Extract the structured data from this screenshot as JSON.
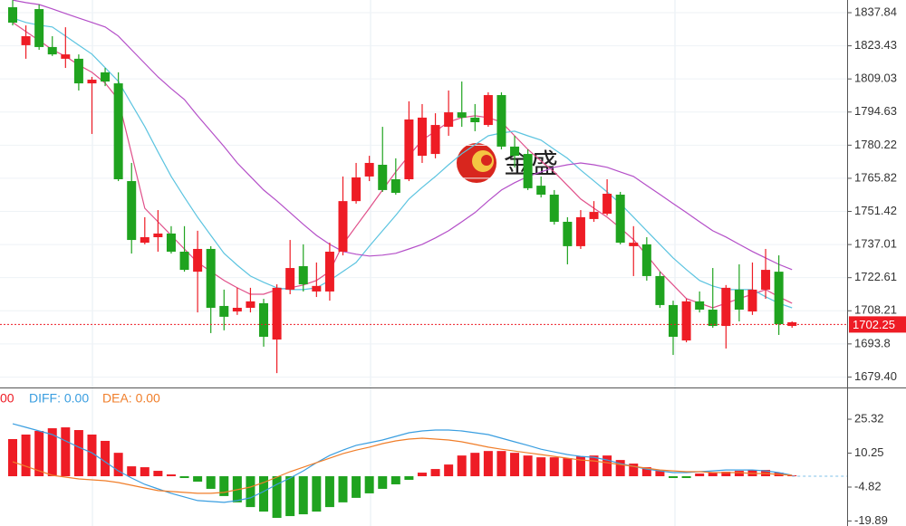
{
  "chart_data": [
    {
      "type": "candlestick",
      "up_color": "#ee1c25",
      "down_color": "#1fa31f",
      "open": [
        1840.2,
        1823.7,
        1839.4,
        1822.9,
        1817.8,
        1817.8,
        1807.1,
        1811.9,
        1807.1,
        1764.6,
        1737.8,
        1740.2,
        1741.8,
        1733.9,
        1725.2,
        1735.1,
        1710.3,
        1707.9,
        1709.5,
        1711.5,
        1695.7,
        1717.4,
        1727.6,
        1716.6,
        1716.6,
        1733.9,
        1755.9,
        1766.6,
        1771.7,
        1765.4,
        1765.4,
        1775.6,
        1776.4,
        1788.2,
        1794.5,
        1792.2,
        1789.0,
        1802.0,
        1779.6,
        1776.4,
        1762.6,
        1758.7,
        1746.9,
        1736.3,
        1748.1,
        1750.4,
        1758.7,
        1736.3,
        1737.1,
        1723.3,
        1710.7,
        1695.3,
        1712.3,
        1708.7,
        1701.6,
        1717.4,
        1707.9,
        1717.4,
        1725.2,
        1701.6
      ],
      "high": [
        1843.3,
        1832.3,
        1841.4,
        1827.6,
        1831.5,
        1819.7,
        1809.9,
        1813.8,
        1811.9,
        1772.5,
        1748.9,
        1752.0,
        1745.0,
        1745.0,
        1743.0,
        1736.3,
        1717.4,
        1718.2,
        1718.2,
        1713.4,
        1719.7,
        1739.0,
        1737.1,
        1729.2,
        1737.8,
        1766.6,
        1772.5,
        1775.6,
        1788.2,
        1774.5,
        1799.3,
        1798.1,
        1794.1,
        1804.0,
        1807.9,
        1798.1,
        1803.2,
        1803.2,
        1784.3,
        1778.4,
        1766.6,
        1760.7,
        1748.9,
        1752.0,
        1755.9,
        1765.4,
        1759.9,
        1745.0,
        1740.2,
        1725.2,
        1712.6,
        1713.4,
        1716.6,
        1726.8,
        1719.4,
        1728.4,
        1729.2,
        1735.1,
        1732.3,
        1703.6
      ],
      "low": [
        1832.3,
        1817.8,
        1821.7,
        1819.0,
        1813.8,
        1804.0,
        1785.1,
        1805.9,
        1764.6,
        1733.1,
        1737.1,
        1733.9,
        1733.1,
        1725.2,
        1707.5,
        1698.5,
        1699.7,
        1706.4,
        1707.5,
        1692.6,
        1681.1,
        1715.4,
        1716.6,
        1714.2,
        1712.6,
        1732.3,
        1754.8,
        1764.6,
        1759.9,
        1758.7,
        1764.6,
        1772.5,
        1774.5,
        1784.3,
        1788.2,
        1786.3,
        1788.2,
        1778.4,
        1770.5,
        1760.7,
        1757.5,
        1745.7,
        1728.4,
        1735.1,
        1746.9,
        1749.6,
        1737.1,
        1723.3,
        1721.3,
        1709.5,
        1689.0,
        1694.5,
        1707.5,
        1700.8,
        1691.8,
        1703.6,
        1706.4,
        1713.4,
        1697.7,
        1700.8
      ],
      "close": [
        1833.5,
        1827.6,
        1822.9,
        1819.7,
        1819.7,
        1807.1,
        1808.7,
        1807.9,
        1765.4,
        1739.0,
        1740.2,
        1741.8,
        1733.9,
        1726.0,
        1735.1,
        1709.5,
        1705.6,
        1709.5,
        1712.3,
        1696.9,
        1718.2,
        1726.8,
        1719.7,
        1719.0,
        1733.9,
        1755.9,
        1766.2,
        1772.5,
        1760.7,
        1759.5,
        1791.4,
        1792.2,
        1789.0,
        1794.5,
        1792.2,
        1790.2,
        1802.0,
        1779.6,
        1775.6,
        1761.5,
        1758.7,
        1746.9,
        1736.3,
        1748.9,
        1751.2,
        1759.1,
        1737.8,
        1737.8,
        1723.3,
        1710.7,
        1696.9,
        1712.3,
        1708.7,
        1701.6,
        1718.2,
        1708.7,
        1717.4,
        1726.0,
        1702.4,
        1703.2
      ],
      "lines": [
        {
          "color": "#e0508a",
          "values": [
            1833.6,
            1829.6,
            1825.7,
            1821.7,
            1818.9,
            1815.1,
            1811.9,
            1807.2,
            1800.1,
            1776.5,
            1752.8,
            1746.9,
            1741.0,
            1735.1,
            1729.2,
            1725.3,
            1721.4,
            1718.2,
            1715.4,
            1715.4,
            1717.4,
            1718.2,
            1719.4,
            1721.4,
            1725.3,
            1737.1,
            1745.0,
            1752.8,
            1760.7,
            1768.6,
            1775.7,
            1782.4,
            1786.3,
            1790.3,
            1792.2,
            1793.0,
            1792.2,
            1790.3,
            1784.3,
            1778.4,
            1773.3,
            1768.6,
            1762.7,
            1756.8,
            1752.8,
            1748.9,
            1744.2,
            1739.1,
            1732.4,
            1725.3,
            1719.4,
            1713.5,
            1711.5,
            1709.5,
            1711.5,
            1713.5,
            1715.4,
            1717.4,
            1714.3,
            1711.5
          ]
        },
        {
          "color": "#5cc4e0",
          "values": [
            1835.5,
            1833.6,
            1832.4,
            1831.6,
            1827.7,
            1823.7,
            1819.8,
            1813.9,
            1808.0,
            1798.1,
            1788.3,
            1777.3,
            1766.6,
            1757.6,
            1748.9,
            1741.0,
            1733.2,
            1728.0,
            1723.3,
            1720.6,
            1718.2,
            1717.4,
            1717.4,
            1718.2,
            1721.4,
            1725.3,
            1729.2,
            1736.3,
            1743.0,
            1749.7,
            1756.8,
            1761.9,
            1766.6,
            1771.7,
            1776.5,
            1780.4,
            1784.3,
            1785.5,
            1786.3,
            1784.3,
            1782.4,
            1778.4,
            1774.5,
            1769.4,
            1764.7,
            1759.9,
            1754.8,
            1748.9,
            1743.0,
            1737.1,
            1731.2,
            1726.1,
            1721.4,
            1719.0,
            1717.4,
            1717.4,
            1717.4,
            1714.3,
            1711.5,
            1709.5
          ]
        },
        {
          "color": "#b44fc8",
          "values": [
            1843.3,
            1842.2,
            1841.4,
            1839.5,
            1837.5,
            1835.5,
            1833.6,
            1831.6,
            1827.7,
            1821.7,
            1815.8,
            1809.9,
            1804.8,
            1800.1,
            1793.0,
            1786.3,
            1779.6,
            1772.5,
            1766.6,
            1760.7,
            1756.0,
            1750.9,
            1745.8,
            1741.0,
            1737.1,
            1734.0,
            1732.8,
            1732.0,
            1732.4,
            1733.2,
            1735.1,
            1737.1,
            1739.9,
            1743.0,
            1746.9,
            1750.9,
            1756.0,
            1760.7,
            1763.9,
            1766.6,
            1768.6,
            1770.6,
            1771.7,
            1772.5,
            1771.7,
            1770.6,
            1768.6,
            1766.6,
            1762.7,
            1758.8,
            1754.8,
            1750.9,
            1746.9,
            1743.0,
            1740.3,
            1737.1,
            1734.0,
            1731.2,
            1728.4,
            1726.1
          ]
        }
      ],
      "ylim": [
        1674.85,
        1843.35
      ],
      "yticks": [
        1837.84,
        1823.43,
        1809.03,
        1794.63,
        1780.22,
        1765.82,
        1751.42,
        1737.01,
        1722.61,
        1708.21,
        1693.8,
        {
          "value": 1679.4,
          "label": "1679.40"
        }
      ],
      "last_price": 1702.25,
      "watermark": "金盛",
      "grid": true
    },
    {
      "type": "macd",
      "legend": [
        {
          "text": "00",
          "color": "#ee1c25"
        },
        {
          "text": "DIFF: 0.00",
          "color": "#3a9ee0"
        },
        {
          "text": "DEA: 0.00",
          "color": "#f07e2a"
        }
      ],
      "up_color": "#ee1c25",
      "down_color": "#1fa31f",
      "histogram": [
        16.5,
        18.5,
        20.1,
        21.3,
        21.7,
        20.5,
        18.5,
        15.7,
        10.4,
        4.4,
        4.0,
        2.4,
        0.8,
        -0.8,
        -2.4,
        -5.6,
        -8.8,
        -11.6,
        -13.7,
        -15.7,
        -18.5,
        -17.7,
        -16.9,
        -15.7,
        -13.7,
        -11.6,
        -9.6,
        -7.6,
        -5.6,
        -3.6,
        -1.6,
        1.6,
        3.2,
        5.2,
        9.2,
        10.4,
        11.2,
        11.2,
        10.4,
        9.2,
        8.4,
        8.4,
        8.0,
        8.8,
        9.2,
        9.2,
        7.2,
        5.6,
        4.0,
        2.4,
        -0.8,
        -0.8,
        1.2,
        1.6,
        2.0,
        2.4,
        2.8,
        2.8,
        1.6,
        0.4
      ],
      "series": [
        {
          "color": "#3a9ee0",
          "values": [
            23.3,
            21.7,
            20.1,
            18.5,
            15.7,
            12.9,
            10.4,
            6.4,
            2.4,
            -0.8,
            -3.6,
            -5.6,
            -7.6,
            -9.2,
            -10.8,
            -11.2,
            -11.6,
            -10.8,
            -9.6,
            -6.8,
            -3.6,
            -0.8,
            2.4,
            6.0,
            9.2,
            11.6,
            13.7,
            14.9,
            16.1,
            17.7,
            19.3,
            20.1,
            20.5,
            20.5,
            20.1,
            19.3,
            18.5,
            16.9,
            15.3,
            13.7,
            12.0,
            10.8,
            9.6,
            8.8,
            8.4,
            7.2,
            5.6,
            4.4,
            3.2,
            2.4,
            1.6,
            1.6,
            2.0,
            2.4,
            2.8,
            2.8,
            2.8,
            2.4,
            1.6,
            0.4
          ]
        },
        {
          "color": "#f07e2a",
          "values": [
            6.4,
            4.4,
            2.4,
            0.4,
            -0.4,
            -1.2,
            -1.6,
            -2.0,
            -2.8,
            -4.0,
            -5.2,
            -6.4,
            -6.8,
            -7.2,
            -7.6,
            -7.6,
            -7.2,
            -6.0,
            -4.8,
            -2.8,
            -0.4,
            2.0,
            4.0,
            6.0,
            8.0,
            10.0,
            11.6,
            12.9,
            14.5,
            15.7,
            16.5,
            16.9,
            16.5,
            16.1,
            15.3,
            14.1,
            12.9,
            12.0,
            11.2,
            10.4,
            9.6,
            8.8,
            8.0,
            7.2,
            6.8,
            6.0,
            5.2,
            4.4,
            3.6,
            2.8,
            2.4,
            2.0,
            2.0,
            1.6,
            1.6,
            1.6,
            1.2,
            1.2,
            0.8,
            0.4
          ]
        }
      ],
      "ylim": [
        -22.1,
        38.6
      ],
      "yticks": [
        25.32,
        10.25,
        -4.82,
        -19.89
      ]
    }
  ]
}
